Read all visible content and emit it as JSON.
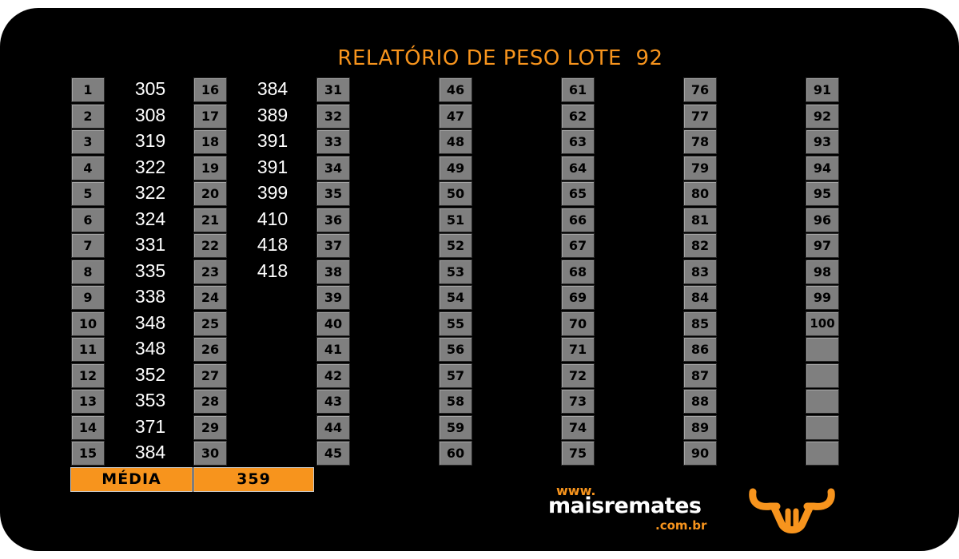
{
  "report": {
    "title": "RELATÓRIO DE PESO LOTE  92",
    "columns": [
      {
        "numbers": [
          "1",
          "2",
          "3",
          "4",
          "5",
          "6",
          "7",
          "8",
          "9",
          "10",
          "11",
          "12",
          "13",
          "14",
          "15"
        ],
        "weights": [
          "305",
          "308",
          "319",
          "322",
          "322",
          "324",
          "331",
          "335",
          "338",
          "348",
          "348",
          "352",
          "353",
          "371",
          "384"
        ]
      },
      {
        "numbers": [
          "16",
          "17",
          "18",
          "19",
          "20",
          "21",
          "22",
          "23",
          "24",
          "25",
          "26",
          "27",
          "28",
          "29",
          "30"
        ],
        "weights": [
          "384",
          "389",
          "391",
          "391",
          "399",
          "410",
          "418",
          "418",
          "",
          "",
          "",
          "",
          "",
          "",
          ""
        ]
      },
      {
        "numbers": [
          "31",
          "32",
          "33",
          "34",
          "35",
          "36",
          "37",
          "38",
          "39",
          "40",
          "41",
          "42",
          "43",
          "44",
          "45"
        ],
        "weights": []
      },
      {
        "numbers": [
          "46",
          "47",
          "48",
          "49",
          "50",
          "51",
          "52",
          "53",
          "54",
          "55",
          "56",
          "57",
          "58",
          "59",
          "60"
        ],
        "weights": []
      },
      {
        "numbers": [
          "61",
          "62",
          "63",
          "64",
          "65",
          "66",
          "67",
          "68",
          "69",
          "70",
          "71",
          "72",
          "73",
          "74",
          "75"
        ],
        "weights": []
      },
      {
        "numbers": [
          "76",
          "77",
          "78",
          "79",
          "80",
          "81",
          "82",
          "83",
          "84",
          "85",
          "86",
          "87",
          "88",
          "89",
          "90"
        ],
        "weights": []
      },
      {
        "numbers": [
          "91",
          "92",
          "93",
          "94",
          "95",
          "96",
          "97",
          "98",
          "99",
          "100",
          "",
          "",
          "",
          "",
          ""
        ],
        "weights": []
      }
    ],
    "average_label": "MÉDIA",
    "average_value": "359"
  },
  "branding": {
    "www": "www.",
    "name": "maisremates",
    "tld": ".com.br",
    "logo_icon": "bull-head-icon"
  },
  "colors": {
    "background": "#000000",
    "accent": "#f7941d",
    "cell": "#7f7f7f",
    "text": "#ffffff"
  }
}
